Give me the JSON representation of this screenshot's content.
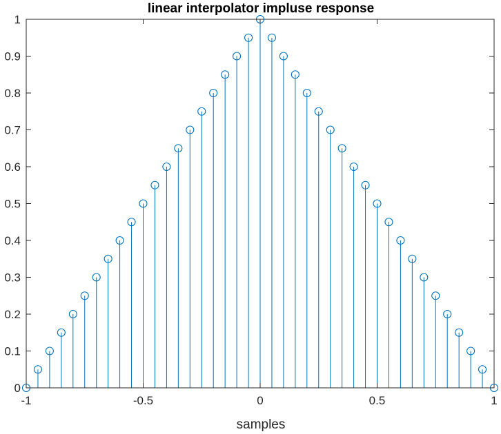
{
  "chart_data": {
    "type": "stem",
    "title": "linear interpolator impluse response",
    "xlabel": "samples",
    "ylabel": "",
    "xlim": [
      -1,
      1
    ],
    "ylim": [
      0,
      1
    ],
    "grid": false,
    "x_ticks": [
      -1,
      -0.5,
      0,
      0.5,
      1
    ],
    "x_tick_labels": [
      "-1",
      "-0.5",
      "0",
      "0.5",
      "1"
    ],
    "y_ticks": [
      0,
      0.1,
      0.2,
      0.3,
      0.4,
      0.5,
      0.6,
      0.7,
      0.8,
      0.9,
      1
    ],
    "y_tick_labels": [
      "0",
      "0.1",
      "0.2",
      "0.3",
      "0.4",
      "0.5",
      "0.6",
      "0.7",
      "0.8",
      "0.9",
      "1"
    ],
    "series": [
      {
        "color": "#0072BD",
        "marker": "open-circle",
        "x": [
          -1,
          -0.95,
          -0.9,
          -0.85,
          -0.8,
          -0.75,
          -0.7,
          -0.65,
          -0.6,
          -0.55,
          -0.5,
          -0.45,
          -0.4,
          -0.35,
          -0.3,
          -0.25,
          -0.2,
          -0.15,
          -0.1,
          -0.05,
          0,
          0.05,
          0.1,
          0.15,
          0.2,
          0.25,
          0.3,
          0.35,
          0.4,
          0.45,
          0.5,
          0.55,
          0.6,
          0.65,
          0.7,
          0.75,
          0.8,
          0.85,
          0.9,
          0.95,
          1
        ],
        "y": [
          0,
          0.05,
          0.1,
          0.15,
          0.2,
          0.25,
          0.3,
          0.35,
          0.4,
          0.45,
          0.5,
          0.55,
          0.6,
          0.65,
          0.7,
          0.75,
          0.8,
          0.85,
          0.9,
          0.95,
          1,
          0.95,
          0.9,
          0.85,
          0.8,
          0.75,
          0.7,
          0.65,
          0.6,
          0.55,
          0.5,
          0.45,
          0.4,
          0.35,
          0.3,
          0.25,
          0.2,
          0.15,
          0.1,
          0.05,
          0
        ]
      }
    ]
  }
}
